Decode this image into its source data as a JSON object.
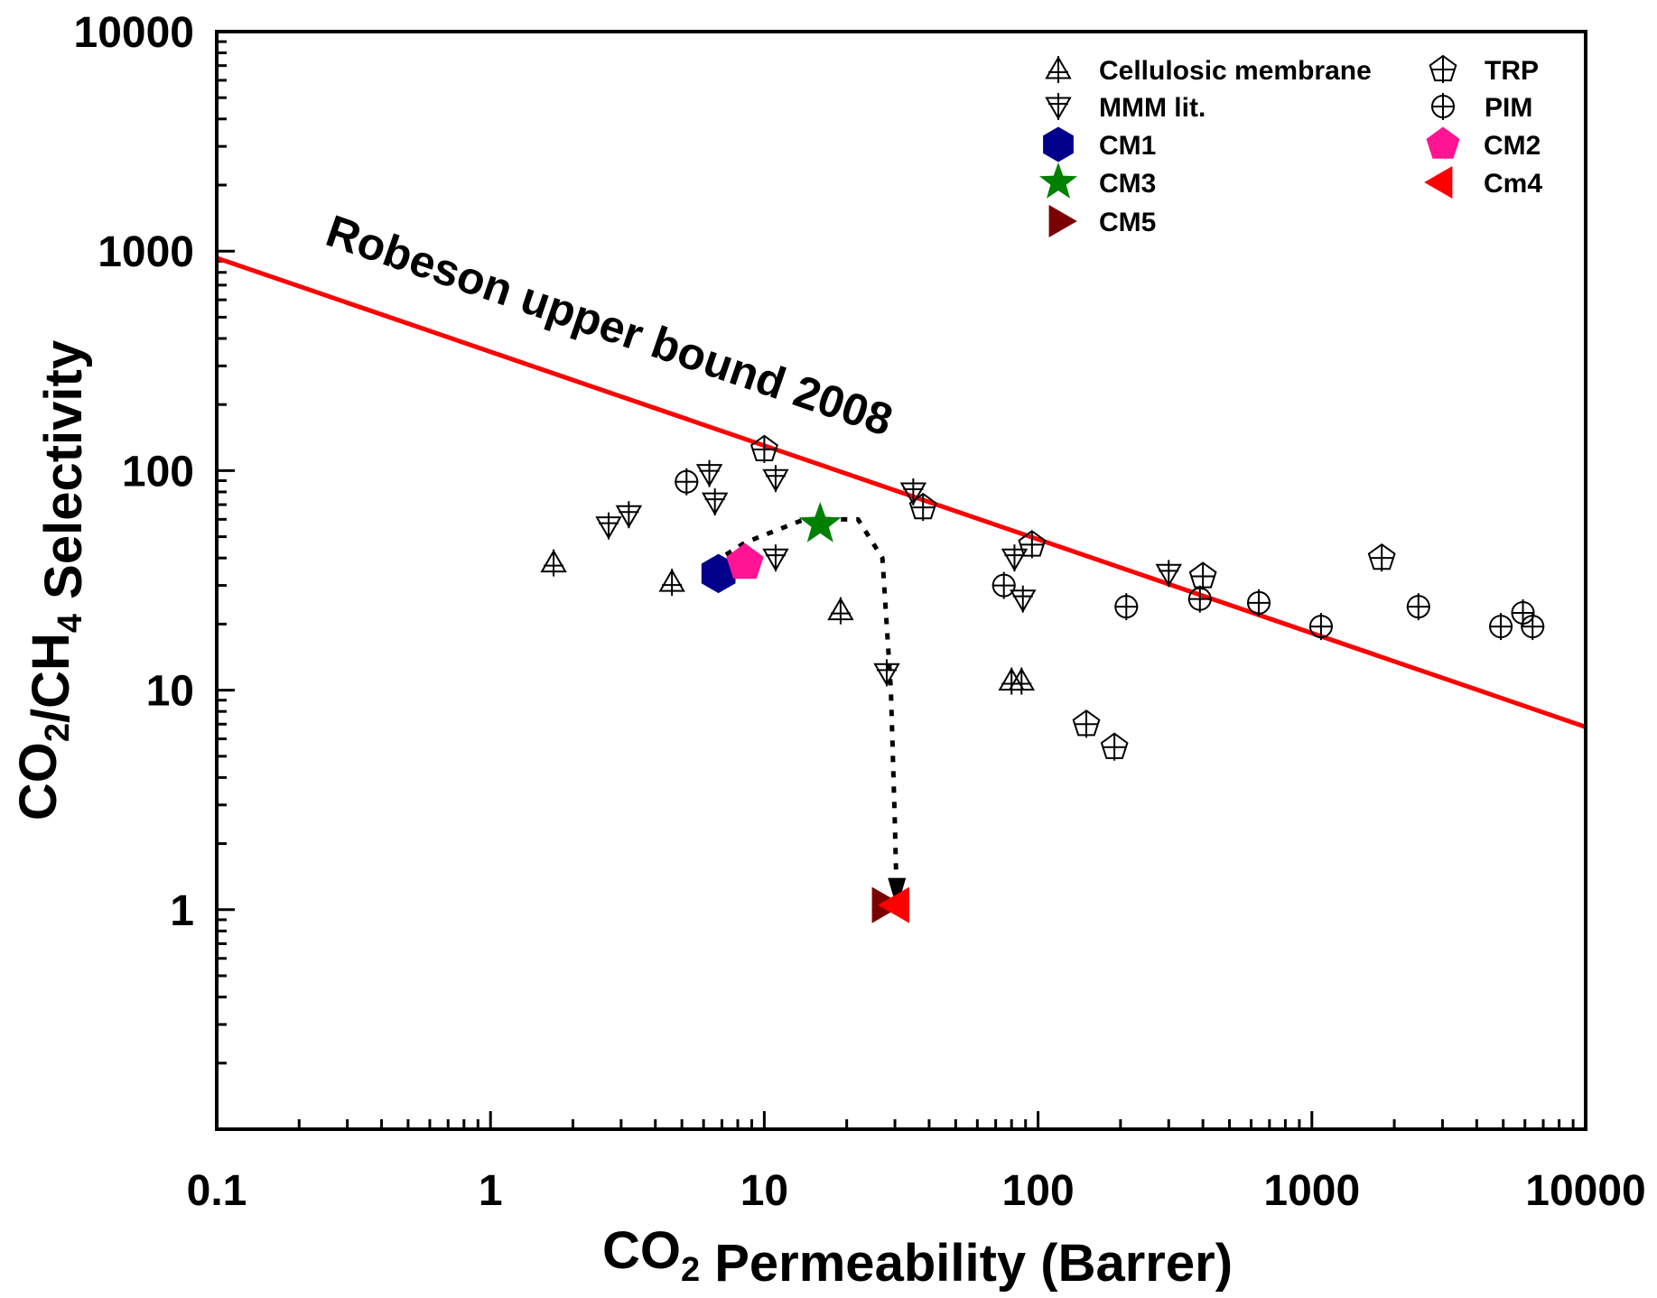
{
  "chart_data": {
    "type": "scatter",
    "xlabel": "CO2 Permeability (Barrer)",
    "ylabel": "CO2/CH4 Selectivity",
    "x_scale": "log",
    "y_scale": "log",
    "xlim": [
      0.1,
      10000
    ],
    "ylim": [
      0.1,
      10000
    ],
    "x_ticks": [
      "0.1",
      "1",
      "10",
      "100",
      "1000",
      "10000"
    ],
    "y_ticks": [
      "1",
      "10",
      "100",
      "1000",
      "10000"
    ],
    "grid": false,
    "legend_position": "top-right",
    "upper_bound": {
      "label": "Robeson upper bound 2008",
      "color": "#ff0000",
      "points": [
        [
          0.1,
          930
        ],
        [
          10000,
          6.8
        ]
      ]
    },
    "trend_arrow": {
      "points": [
        [
          6.5,
          38
        ],
        [
          8.5,
          47
        ],
        [
          14,
          60
        ],
        [
          22,
          60
        ],
        [
          27,
          40
        ],
        [
          29,
          10
        ],
        [
          30,
          2.4
        ],
        [
          30.5,
          1.05
        ]
      ]
    },
    "series": [
      {
        "name": "Cellulosic membrane",
        "marker": "triangle-up",
        "filled": false,
        "color": "#000000",
        "points": [
          [
            1.7,
            38
          ],
          [
            4.6,
            31
          ],
          [
            19,
            23
          ],
          [
            80,
            11
          ],
          [
            87,
            11
          ]
        ]
      },
      {
        "name": "TRP",
        "marker": "pentagon",
        "filled": false,
        "color": "#000000",
        "points": [
          [
            10,
            125
          ],
          [
            38,
            68
          ],
          [
            95,
            46
          ],
          [
            400,
            33
          ],
          [
            1800,
            40
          ],
          [
            150,
            7
          ],
          [
            190,
            5.5
          ]
        ]
      },
      {
        "name": "MMM lit.",
        "marker": "triangle-down",
        "filled": false,
        "color": "#000000",
        "points": [
          [
            2.7,
            56
          ],
          [
            3.2,
            63
          ],
          [
            6.3,
            97
          ],
          [
            6.6,
            72
          ],
          [
            11,
            92
          ],
          [
            11,
            40
          ],
          [
            35,
            80
          ],
          [
            28,
            12
          ],
          [
            82,
            40
          ],
          [
            88,
            26
          ],
          [
            300,
            34
          ]
        ]
      },
      {
        "name": "PIM",
        "marker": "circle",
        "filled": false,
        "color": "#000000",
        "points": [
          [
            5.2,
            89
          ],
          [
            75,
            30
          ],
          [
            210,
            24
          ],
          [
            390,
            26
          ],
          [
            640,
            25
          ],
          [
            1080,
            19.5
          ],
          [
            2450,
            24
          ],
          [
            4900,
            19.5
          ],
          [
            5900,
            22.5
          ],
          [
            6400,
            19.5
          ]
        ]
      },
      {
        "name": "CM1",
        "marker": "hexagon",
        "filled": true,
        "color": "#00008b",
        "points": [
          [
            6.8,
            34
          ]
        ]
      },
      {
        "name": "CM2",
        "marker": "pentagon",
        "filled": true,
        "color": "#ff1493",
        "points": [
          [
            8.5,
            38
          ]
        ]
      },
      {
        "name": "CM3",
        "marker": "star",
        "filled": true,
        "color": "#008000",
        "points": [
          [
            16,
            57
          ]
        ]
      },
      {
        "name": "Cm4",
        "marker": "triangle-left",
        "filled": true,
        "color": "#ff0000",
        "points": [
          [
            31,
            1.05
          ]
        ]
      },
      {
        "name": "CM5",
        "marker": "triangle-right",
        "filled": true,
        "color": "#7b0000",
        "points": [
          [
            27,
            1.05
          ]
        ]
      }
    ]
  }
}
